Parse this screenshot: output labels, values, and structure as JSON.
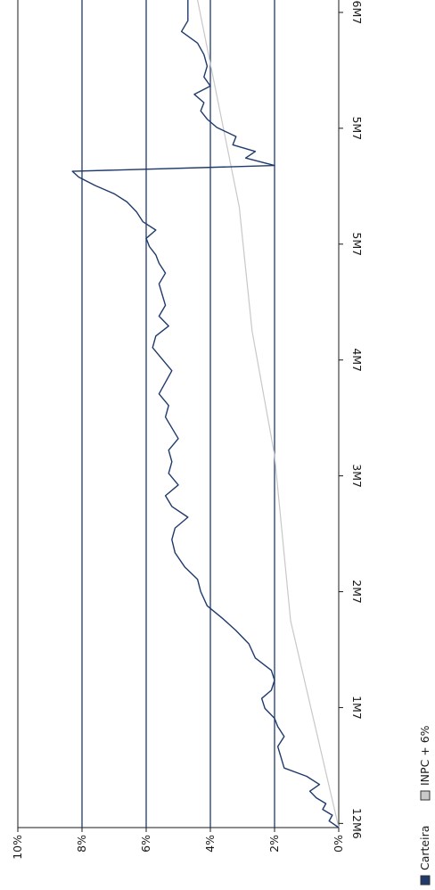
{
  "chart_data": {
    "type": "line",
    "orientation": "rotated 90 degrees clockwise",
    "x_ticks": [
      "12M6",
      "1M7",
      "2M7",
      "3M7",
      "4M7",
      "5M7",
      "5M7",
      "6M7"
    ],
    "y_ticks": [
      "0%",
      "2%",
      "4%",
      "6%",
      "8%",
      "10%"
    ],
    "ylim": [
      0,
      10
    ],
    "xlim": [
      0,
      1
    ],
    "grid": "horizontal lines at 2%, 4%, 6% and 8%",
    "legend_position": "bottom-left",
    "colors": {
      "carteira": "#1f3a6b",
      "inpc": "#c8c8c8",
      "grid": "#1f3a6b",
      "frame": "#1a1a1a"
    },
    "series": [
      {
        "name": "Carteira",
        "color": "#1f3a6b",
        "points": [
          [
            0.0,
            0.0
          ],
          [
            0.008,
            0.3
          ],
          [
            0.015,
            0.2
          ],
          [
            0.022,
            0.5
          ],
          [
            0.029,
            0.4
          ],
          [
            0.036,
            0.7
          ],
          [
            0.044,
            0.9
          ],
          [
            0.052,
            0.6
          ],
          [
            0.062,
            1.0
          ],
          [
            0.072,
            1.7
          ],
          [
            0.085,
            1.8
          ],
          [
            0.098,
            1.9
          ],
          [
            0.11,
            1.7
          ],
          [
            0.122,
            1.9
          ],
          [
            0.132,
            2.0
          ],
          [
            0.144,
            2.3
          ],
          [
            0.156,
            2.4
          ],
          [
            0.166,
            2.1
          ],
          [
            0.178,
            2.0
          ],
          [
            0.19,
            2.1
          ],
          [
            0.205,
            2.6
          ],
          [
            0.222,
            2.8
          ],
          [
            0.238,
            3.2
          ],
          [
            0.252,
            3.6
          ],
          [
            0.268,
            4.1
          ],
          [
            0.285,
            4.3
          ],
          [
            0.3,
            4.4
          ],
          [
            0.315,
            4.8
          ],
          [
            0.332,
            5.1
          ],
          [
            0.348,
            5.2
          ],
          [
            0.362,
            5.1
          ],
          [
            0.375,
            4.7
          ],
          [
            0.388,
            5.2
          ],
          [
            0.401,
            5.4
          ],
          [
            0.414,
            5.0
          ],
          [
            0.428,
            5.3
          ],
          [
            0.442,
            5.2
          ],
          [
            0.456,
            5.3
          ],
          [
            0.47,
            5.0
          ],
          [
            0.483,
            5.2
          ],
          [
            0.496,
            5.4
          ],
          [
            0.51,
            5.3
          ],
          [
            0.524,
            5.6
          ],
          [
            0.538,
            5.4
          ],
          [
            0.552,
            5.2
          ],
          [
            0.566,
            5.5
          ],
          [
            0.58,
            5.8
          ],
          [
            0.594,
            5.7
          ],
          [
            0.606,
            5.3
          ],
          [
            0.618,
            5.6
          ],
          [
            0.631,
            5.4
          ],
          [
            0.644,
            5.5
          ],
          [
            0.657,
            5.6
          ],
          [
            0.67,
            5.4
          ],
          [
            0.682,
            5.6
          ],
          [
            0.692,
            5.7
          ],
          [
            0.702,
            5.9
          ],
          [
            0.712,
            6.0
          ],
          [
            0.722,
            5.7
          ],
          [
            0.732,
            6.1
          ],
          [
            0.744,
            6.3
          ],
          [
            0.756,
            6.6
          ],
          [
            0.766,
            7.0
          ],
          [
            0.776,
            7.6
          ],
          [
            0.786,
            8.1
          ],
          [
            0.793,
            8.3
          ],
          [
            0.8,
            2.0
          ],
          [
            0.809,
            2.9
          ],
          [
            0.817,
            2.6
          ],
          [
            0.825,
            3.3
          ],
          [
            0.835,
            3.2
          ],
          [
            0.846,
            3.8
          ],
          [
            0.856,
            4.1
          ],
          [
            0.866,
            4.3
          ],
          [
            0.876,
            4.2
          ],
          [
            0.886,
            4.5
          ],
          [
            0.896,
            4.0
          ],
          [
            0.907,
            4.2
          ],
          [
            0.92,
            4.1
          ],
          [
            0.934,
            4.2
          ],
          [
            0.948,
            4.4
          ],
          [
            0.962,
            4.9
          ],
          [
            0.975,
            4.7
          ],
          [
            0.988,
            4.7
          ],
          [
            1.0,
            4.7
          ]
        ]
      },
      {
        "name": "INPC + 6%",
        "color": "#c8c8c8",
        "points": [
          [
            0.0,
            0.0
          ],
          [
            0.25,
            1.5
          ],
          [
            0.45,
            2.0
          ],
          [
            0.6,
            2.7
          ],
          [
            0.75,
            3.1
          ],
          [
            1.0,
            4.4
          ]
        ]
      }
    ]
  }
}
